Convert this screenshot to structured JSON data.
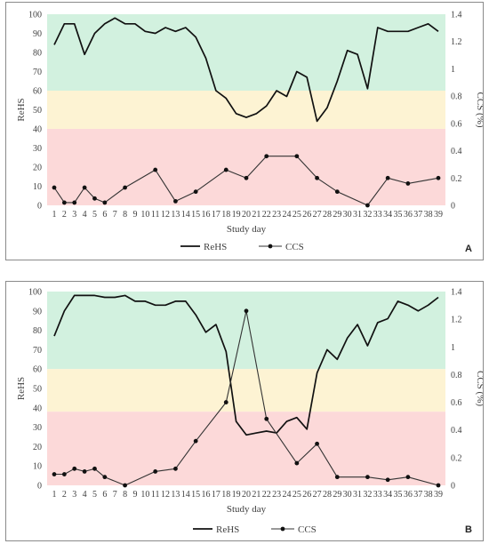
{
  "chart_data": [
    {
      "type": "line",
      "panel_label": "A",
      "x": [
        1,
        2,
        3,
        4,
        5,
        6,
        7,
        8,
        9,
        10,
        11,
        12,
        13,
        14,
        15,
        16,
        17,
        18,
        19,
        20,
        21,
        22,
        23,
        24,
        25,
        26,
        27,
        28,
        29,
        30,
        31,
        32,
        33,
        34,
        35,
        36,
        37,
        38,
        39
      ],
      "xlabel": "Study day",
      "ylabel": "ReHS",
      "y2label": "CCS (%)",
      "ylim": [
        0,
        100
      ],
      "y2lim": [
        0,
        1.4
      ],
      "yticks": [
        "0",
        "10",
        "20",
        "30",
        "40",
        "50",
        "60",
        "70",
        "80",
        "90",
        "100"
      ],
      "y2ticks": [
        "0",
        "0.2",
        "0.4",
        "0.6",
        "0.8",
        "1",
        "1.2",
        "1.4"
      ],
      "bands": [
        {
          "from": 60,
          "to": 100,
          "color": "#d2f1df"
        },
        {
          "from": 40,
          "to": 60,
          "color": "#fdf3d3"
        },
        {
          "from": 0,
          "to": 40,
          "color": "#fcd9d9"
        }
      ],
      "series": [
        {
          "name": "ReHS",
          "axis": "left",
          "marker": false,
          "points": [
            [
              1,
              84
            ],
            [
              2,
              95
            ],
            [
              3,
              95
            ],
            [
              4,
              79
            ],
            [
              5,
              90
            ],
            [
              6,
              95
            ],
            [
              7,
              98
            ],
            [
              8,
              95
            ],
            [
              9,
              95
            ],
            [
              10,
              91
            ],
            [
              11,
              90
            ],
            [
              12,
              93
            ],
            [
              13,
              91
            ],
            [
              14,
              93
            ],
            [
              15,
              88
            ],
            [
              16,
              77
            ],
            [
              17,
              60
            ],
            [
              18,
              56
            ],
            [
              19,
              48
            ],
            [
              20,
              46
            ],
            [
              21,
              48
            ],
            [
              22,
              52
            ],
            [
              23,
              60
            ],
            [
              24,
              57
            ],
            [
              25,
              70
            ],
            [
              26,
              67
            ],
            [
              27,
              44
            ],
            [
              28,
              51
            ],
            [
              29,
              65
            ],
            [
              30,
              81
            ],
            [
              31,
              79
            ],
            [
              32,
              61
            ],
            [
              33,
              93
            ],
            [
              34,
              91
            ],
            [
              35,
              91
            ],
            [
              36,
              91
            ],
            [
              37,
              93
            ],
            [
              38,
              95
            ],
            [
              39,
              91
            ]
          ]
        },
        {
          "name": "CCS",
          "axis": "right",
          "marker": true,
          "points": [
            [
              1,
              0.13
            ],
            [
              2,
              0.02
            ],
            [
              3,
              0.02
            ],
            [
              4,
              0.13
            ],
            [
              5,
              0.05
            ],
            [
              6,
              0.02
            ],
            [
              8,
              0.13
            ],
            [
              11,
              0.26
            ],
            [
              13,
              0.03
            ],
            [
              15,
              0.1
            ],
            [
              18,
              0.26
            ],
            [
              20,
              0.2
            ],
            [
              22,
              0.36
            ],
            [
              25,
              0.36
            ],
            [
              27,
              0.2
            ],
            [
              29,
              0.1
            ],
            [
              32,
              0.0
            ],
            [
              34,
              0.2
            ],
            [
              36,
              0.16
            ],
            [
              39,
              0.2
            ]
          ]
        }
      ]
    },
    {
      "type": "line",
      "panel_label": "B",
      "x": [
        1,
        2,
        3,
        4,
        5,
        6,
        7,
        8,
        9,
        10,
        11,
        12,
        13,
        14,
        15,
        16,
        17,
        18,
        19,
        20,
        21,
        22,
        23,
        24,
        25,
        26,
        27,
        28,
        29,
        30,
        31,
        32,
        33,
        34,
        35,
        36,
        37,
        38,
        39
      ],
      "xlabel": "Study day",
      "ylabel": "ReHS",
      "y2label": "CCS (%)",
      "ylim": [
        0,
        100
      ],
      "y2lim": [
        0,
        1.4
      ],
      "yticks": [
        "0",
        "10",
        "20",
        "30",
        "40",
        "50",
        "60",
        "70",
        "80",
        "90",
        "100"
      ],
      "y2ticks": [
        "0",
        "0.2",
        "0.4",
        "0.6",
        "0.8",
        "1",
        "1.2",
        "1.4"
      ],
      "bands": [
        {
          "from": 60,
          "to": 100,
          "color": "#d2f1df"
        },
        {
          "from": 38,
          "to": 60,
          "color": "#fdf3d3"
        },
        {
          "from": 0,
          "to": 38,
          "color": "#fcd9d9"
        }
      ],
      "series": [
        {
          "name": "ReHS",
          "axis": "left",
          "marker": false,
          "points": [
            [
              1,
              77
            ],
            [
              2,
              90
            ],
            [
              3,
              98
            ],
            [
              4,
              98
            ],
            [
              5,
              98
            ],
            [
              6,
              97
            ],
            [
              7,
              97
            ],
            [
              8,
              98
            ],
            [
              9,
              95
            ],
            [
              10,
              95
            ],
            [
              11,
              93
            ],
            [
              12,
              93
            ],
            [
              13,
              95
            ],
            [
              14,
              95
            ],
            [
              15,
              88
            ],
            [
              16,
              79
            ],
            [
              17,
              83
            ],
            [
              18,
              69
            ],
            [
              19,
              33
            ],
            [
              20,
              26
            ],
            [
              21,
              27
            ],
            [
              22,
              28
            ],
            [
              23,
              27
            ],
            [
              24,
              33
            ],
            [
              25,
              35
            ],
            [
              26,
              29
            ],
            [
              27,
              58
            ],
            [
              28,
              70
            ],
            [
              29,
              65
            ],
            [
              30,
              76
            ],
            [
              31,
              83
            ],
            [
              32,
              72
            ],
            [
              33,
              84
            ],
            [
              34,
              86
            ],
            [
              35,
              95
            ],
            [
              36,
              93
            ],
            [
              37,
              90
            ],
            [
              38,
              93
            ],
            [
              39,
              97
            ]
          ]
        },
        {
          "name": "CCS",
          "axis": "right",
          "marker": true,
          "points": [
            [
              1,
              0.08
            ],
            [
              2,
              0.08
            ],
            [
              3,
              0.12
            ],
            [
              4,
              0.1
            ],
            [
              5,
              0.12
            ],
            [
              6,
              0.06
            ],
            [
              8,
              0.0
            ],
            [
              11,
              0.1
            ],
            [
              13,
              0.12
            ],
            [
              15,
              0.32
            ],
            [
              18,
              0.6
            ],
            [
              20,
              1.26
            ],
            [
              22,
              0.48
            ],
            [
              25,
              0.16
            ],
            [
              27,
              0.3
            ],
            [
              29,
              0.06
            ],
            [
              32,
              0.06
            ],
            [
              34,
              0.04
            ],
            [
              36,
              0.06
            ],
            [
              39,
              0.0
            ]
          ]
        }
      ]
    }
  ]
}
